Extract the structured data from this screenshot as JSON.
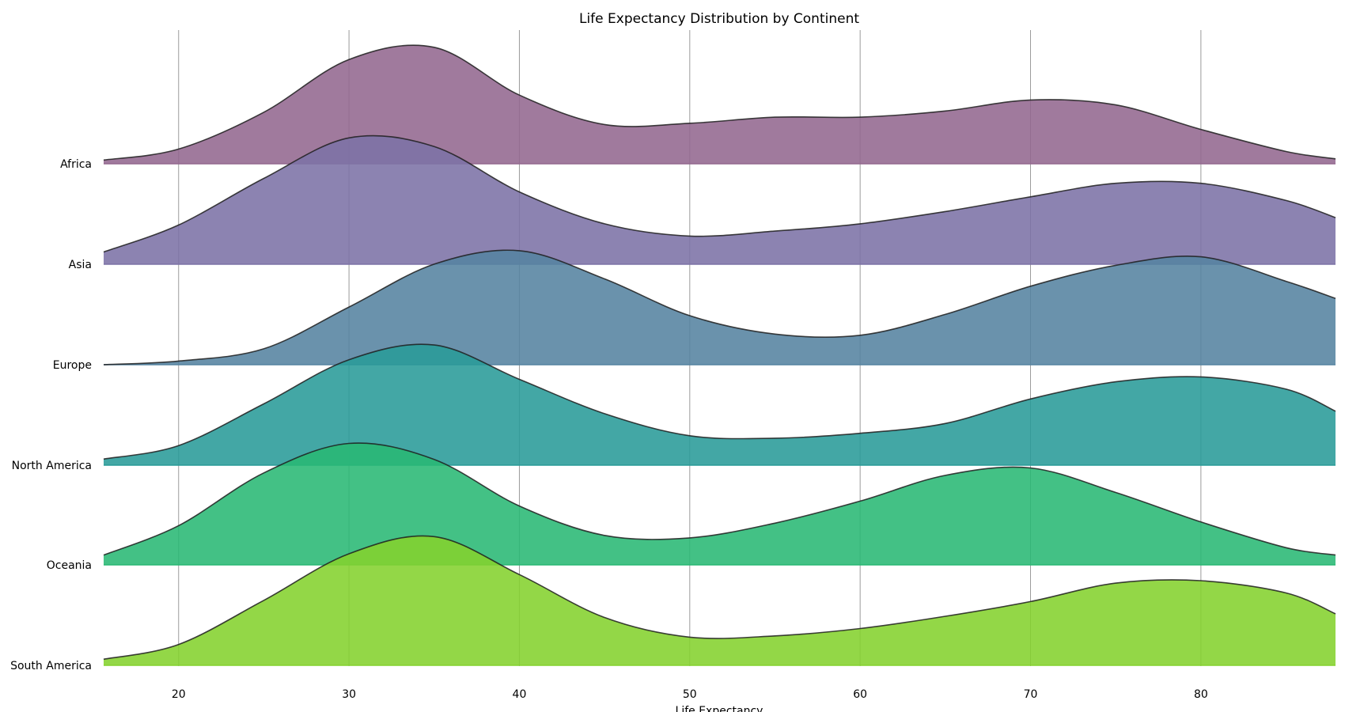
{
  "chart_data": {
    "type": "area",
    "subtype": "ridgeline",
    "title": "Life Expectancy Distribution by Continent",
    "xlabel": "Life Expectancy",
    "ylabel": "",
    "xlim": [
      15.6,
      87.9
    ],
    "x_ticks": [
      20,
      30,
      40,
      50,
      60,
      70,
      80
    ],
    "grid": "vertical",
    "legend": "none",
    "x": [
      15.6,
      20,
      25,
      30,
      35,
      40,
      45,
      50,
      55,
      60,
      65,
      70,
      75,
      80,
      85,
      87.9
    ],
    "series": [
      {
        "name": "Africa",
        "color": "#93688f",
        "values": [
          0.03,
          0.12,
          0.42,
          0.85,
          0.95,
          0.56,
          0.32,
          0.33,
          0.38,
          0.38,
          0.43,
          0.52,
          0.48,
          0.28,
          0.1,
          0.04
        ]
      },
      {
        "name": "Asia",
        "color": "#7c72a6",
        "values": [
          0.1,
          0.32,
          0.7,
          1.03,
          0.96,
          0.59,
          0.33,
          0.23,
          0.27,
          0.33,
          0.43,
          0.55,
          0.66,
          0.66,
          0.52,
          0.38
        ]
      },
      {
        "name": "Europe",
        "color": "#5583a1",
        "values": [
          0.0,
          0.03,
          0.13,
          0.47,
          0.82,
          0.93,
          0.7,
          0.4,
          0.25,
          0.24,
          0.41,
          0.64,
          0.81,
          0.88,
          0.68,
          0.54
        ]
      },
      {
        "name": "North America",
        "color": "#299b98",
        "values": [
          0.05,
          0.16,
          0.5,
          0.86,
          0.98,
          0.7,
          0.42,
          0.24,
          0.22,
          0.26,
          0.34,
          0.54,
          0.68,
          0.72,
          0.62,
          0.44
        ]
      },
      {
        "name": "Oceania",
        "color": "#29b874",
        "values": [
          0.08,
          0.32,
          0.75,
          0.99,
          0.86,
          0.48,
          0.24,
          0.22,
          0.34,
          0.52,
          0.73,
          0.79,
          0.59,
          0.35,
          0.14,
          0.08
        ]
      },
      {
        "name": "South America",
        "color": "#84d22e",
        "values": [
          0.05,
          0.17,
          0.53,
          0.91,
          1.05,
          0.74,
          0.39,
          0.23,
          0.24,
          0.3,
          0.4,
          0.52,
          0.67,
          0.69,
          0.59,
          0.42
        ]
      }
    ]
  }
}
